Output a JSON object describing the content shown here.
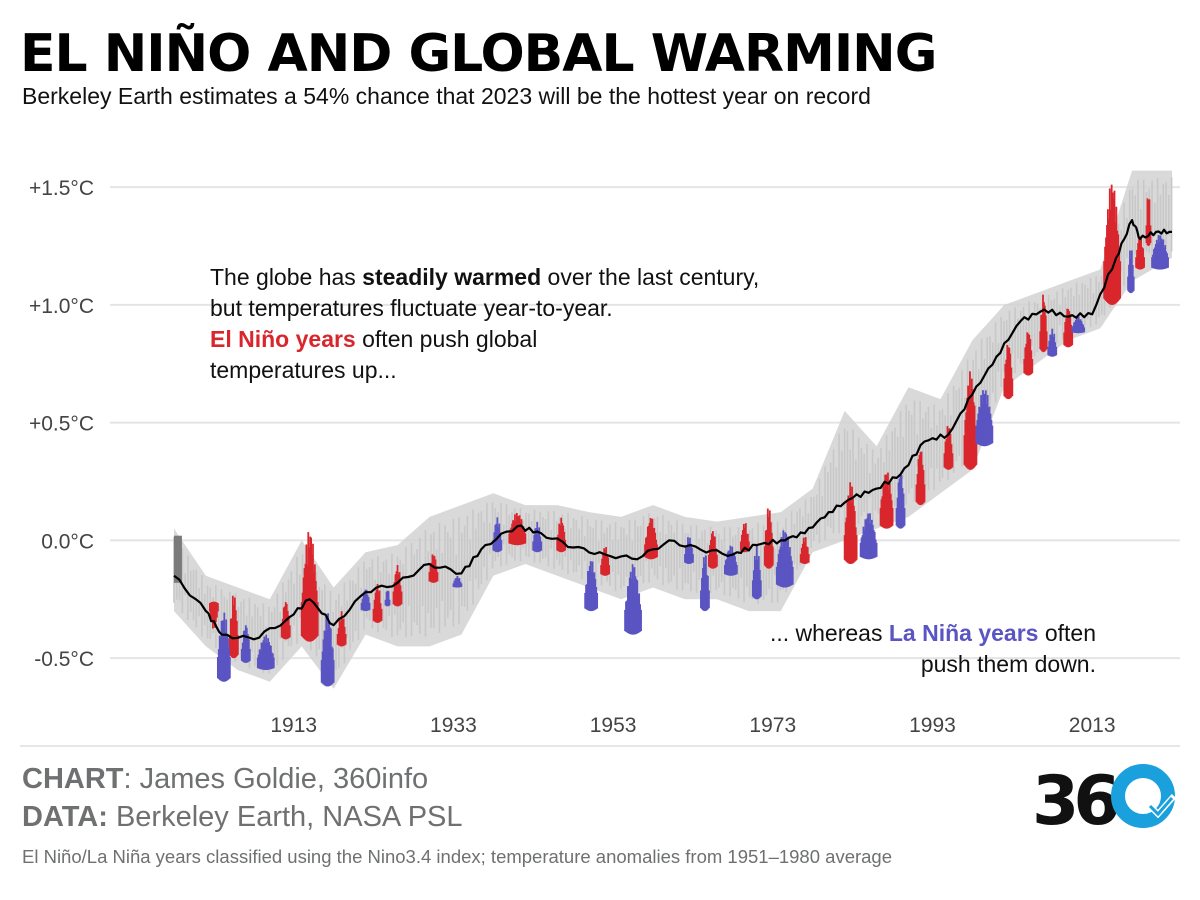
{
  "header": {
    "title": "EL NIÑO AND GLOBAL WARMING",
    "subtitle": "Berkeley Earth estimates a 54% chance that 2023 will be the hottest year on record"
  },
  "annotations": {
    "top_line1_pre": "The globe has ",
    "top_line1_bold": "steadily warmed",
    "top_line1_post": " over the last century,",
    "top_line2": "but temperatures fluctuate year-to-year.",
    "top_line3_red": "El Niño years",
    "top_line3_post": " often push global",
    "top_line4": "temperatures up...",
    "bottom_line1_pre": "... whereas ",
    "bottom_line1_blue": "La Niña years",
    "bottom_line1_post": " often",
    "bottom_line2": "push them down."
  },
  "footer": {
    "chart_label": "CHART",
    "chart_value": ": James Goldie, 360info",
    "data_label": "DATA:",
    "data_value": " Berkeley Earth, NASA PSL",
    "note": "El Niño/La Niña years classified using the Nino3.4 index; temperature anomalies from 1951–1980 average",
    "logo_text": "360"
  },
  "colors": {
    "el_nino": "#d9262c",
    "la_nina": "#5a55c2",
    "neutral": "#d2d2d2",
    "unclassified": "#7a7a7a",
    "trend": "#000000",
    "logo_blue": "#1aa0dc"
  },
  "chart_data": {
    "type": "area",
    "title": "EL NIÑO AND GLOBAL WARMING",
    "x_unit": "year",
    "y_unit": "°C",
    "xlim": [
      1895,
      2024
    ],
    "ylim": [
      -0.72,
      1.7
    ],
    "x_ticks": [
      1913,
      1933,
      1953,
      1973,
      1993,
      2013
    ],
    "y_ticks": [
      {
        "value": 1.5,
        "label": "+1.5°C"
      },
      {
        "value": 1.0,
        "label": "+1.0°C"
      },
      {
        "value": 0.5,
        "label": "+0.5°C"
      },
      {
        "value": 0.0,
        "label": "0.0°C"
      },
      {
        "value": -0.5,
        "label": "-0.5°C"
      }
    ],
    "grid": true,
    "series": [
      {
        "name": "El Niño years",
        "color": "#d9262c",
        "segments": [
          {
            "start": 1902.5,
            "end": 1903.5,
            "peak": -0.38,
            "dip": -0.26
          },
          {
            "start": 1905,
            "end": 1906,
            "peak": -0.22,
            "dip": -0.5
          },
          {
            "start": 1911.5,
            "end": 1912.5,
            "peak": -0.25,
            "dip": -0.42
          },
          {
            "start": 1914,
            "end": 1916,
            "peak": 0.05,
            "dip": -0.43
          },
          {
            "start": 1918.5,
            "end": 1919.5,
            "peak": -0.3,
            "dip": -0.45
          },
          {
            "start": 1923,
            "end": 1924,
            "peak": -0.18,
            "dip": -0.35
          },
          {
            "start": 1925.5,
            "end": 1926.5,
            "peak": -0.1,
            "dip": -0.28
          },
          {
            "start": 1930,
            "end": 1931,
            "peak": -0.05,
            "dip": -0.18
          },
          {
            "start": 1940,
            "end": 1942,
            "peak": 0.12,
            "dip": -0.02
          },
          {
            "start": 1946,
            "end": 1947,
            "peak": 0.1,
            "dip": -0.05
          },
          {
            "start": 1951.5,
            "end": 1952.5,
            "peak": -0.02,
            "dip": -0.15
          },
          {
            "start": 1957,
            "end": 1958.5,
            "peak": 0.1,
            "dip": -0.08
          },
          {
            "start": 1965,
            "end": 1966,
            "peak": 0.05,
            "dip": -0.12
          },
          {
            "start": 1969,
            "end": 1970,
            "peak": 0.08,
            "dip": -0.05
          },
          {
            "start": 1972,
            "end": 1973,
            "peak": 0.15,
            "dip": -0.12
          },
          {
            "start": 1976.5,
            "end": 1977.5,
            "peak": 0.02,
            "dip": -0.1
          },
          {
            "start": 1982,
            "end": 1983.5,
            "peak": 0.25,
            "dip": -0.1
          },
          {
            "start": 1986.5,
            "end": 1988,
            "peak": 0.3,
            "dip": 0.05
          },
          {
            "start": 1991,
            "end": 1992,
            "peak": 0.4,
            "dip": 0.15
          },
          {
            "start": 1994.5,
            "end": 1995.5,
            "peak": 0.5,
            "dip": 0.3
          },
          {
            "start": 1997,
            "end": 1998.5,
            "peak": 0.72,
            "dip": 0.3
          },
          {
            "start": 2002,
            "end": 2003,
            "peak": 0.85,
            "dip": 0.6
          },
          {
            "start": 2004.5,
            "end": 2005.5,
            "peak": 0.9,
            "dip": 0.7
          },
          {
            "start": 2006.5,
            "end": 2007.3,
            "peak": 1.05,
            "dip": 0.8
          },
          {
            "start": 2009.5,
            "end": 2010.5,
            "peak": 1.0,
            "dip": 0.82
          },
          {
            "start": 2014.5,
            "end": 2016.5,
            "peak": 1.53,
            "dip": 1.0
          },
          {
            "start": 2018.5,
            "end": 2019.5,
            "peak": 1.3,
            "dip": 1.15
          },
          {
            "start": 2019.8,
            "end": 2020.3,
            "peak": 1.5,
            "dip": 1.25
          }
        ]
      },
      {
        "name": "La Niña years",
        "color": "#5a55c2",
        "segments": [
          {
            "start": 1903.5,
            "end": 1905,
            "peak": -0.3,
            "dip": -0.6
          },
          {
            "start": 1906.5,
            "end": 1907.5,
            "peak": -0.35,
            "dip": -0.52
          },
          {
            "start": 1908.5,
            "end": 1910.5,
            "peak": -0.4,
            "dip": -0.55
          },
          {
            "start": 1916.5,
            "end": 1918,
            "peak": -0.3,
            "dip": -0.62
          },
          {
            "start": 1921.5,
            "end": 1922.5,
            "peak": -0.2,
            "dip": -0.3
          },
          {
            "start": 1924.5,
            "end": 1925,
            "peak": -0.2,
            "dip": -0.28
          },
          {
            "start": 1933,
            "end": 1934,
            "peak": -0.15,
            "dip": -0.2
          },
          {
            "start": 1938,
            "end": 1939,
            "peak": 0.1,
            "dip": -0.05
          },
          {
            "start": 1943,
            "end": 1944,
            "peak": 0.08,
            "dip": -0.05
          },
          {
            "start": 1949.5,
            "end": 1951,
            "peak": -0.08,
            "dip": -0.3
          },
          {
            "start": 1954.5,
            "end": 1956.5,
            "peak": -0.1,
            "dip": -0.4
          },
          {
            "start": 1962,
            "end": 1963,
            "peak": 0.02,
            "dip": -0.1
          },
          {
            "start": 1964,
            "end": 1965,
            "peak": -0.05,
            "dip": -0.3
          },
          {
            "start": 1967,
            "end": 1968.5,
            "peak": -0.02,
            "dip": -0.15
          },
          {
            "start": 1970.5,
            "end": 1971.5,
            "peak": -0.02,
            "dip": -0.25
          },
          {
            "start": 1973.5,
            "end": 1975.5,
            "peak": 0.05,
            "dip": -0.2
          },
          {
            "start": 1984,
            "end": 1986,
            "peak": 0.12,
            "dip": -0.08
          },
          {
            "start": 1988.5,
            "end": 1989.5,
            "peak": 0.3,
            "dip": 0.05
          },
          {
            "start": 1998.5,
            "end": 2000.5,
            "peak": 0.65,
            "dip": 0.4
          },
          {
            "start": 2007.5,
            "end": 2008.5,
            "peak": 0.9,
            "dip": 0.78
          },
          {
            "start": 2010.5,
            "end": 2012,
            "peak": 0.95,
            "dip": 0.88
          },
          {
            "start": 2017.5,
            "end": 2018.2,
            "peak": 1.25,
            "dip": 1.05
          },
          {
            "start": 2020.5,
            "end": 2022.5,
            "peak": 1.3,
            "dip": 1.15
          }
        ]
      }
    ],
    "trend": {
      "name": "",
      "x": [
        1898,
        1902,
        1904,
        1908,
        1912,
        1915,
        1918,
        1922,
        1926,
        1930,
        1934,
        1937,
        1941,
        1944,
        1948,
        1952,
        1956,
        1960,
        1964,
        1968,
        1971,
        1974,
        1977,
        1980,
        1983,
        1986,
        1989,
        1992,
        1995,
        1998,
        2001,
        2004,
        2007,
        2010,
        2013,
        2016,
        2018,
        2019,
        2021,
        2023
      ],
      "y": [
        -0.15,
        -0.3,
        -0.4,
        -0.42,
        -0.34,
        -0.25,
        -0.36,
        -0.22,
        -0.18,
        -0.1,
        -0.14,
        -0.02,
        0.06,
        0.03,
        -0.03,
        -0.06,
        -0.08,
        0.0,
        -0.04,
        -0.06,
        -0.02,
        0.0,
        0.03,
        0.12,
        0.18,
        0.22,
        0.28,
        0.42,
        0.45,
        0.62,
        0.78,
        0.93,
        0.98,
        0.95,
        0.96,
        1.2,
        1.36,
        1.28,
        1.31,
        1.31
      ]
    },
    "neutral_envelope": {
      "x": [
        1898,
        1902,
        1906,
        1910,
        1914,
        1918,
        1922,
        1926,
        1930,
        1934,
        1938,
        1942,
        1946,
        1950,
        1954,
        1958,
        1962,
        1966,
        1970,
        1974,
        1978,
        1982,
        1986,
        1990,
        1994,
        1998,
        2002,
        2006,
        2010,
        2014,
        2018,
        2023
      ],
      "high": [
        0.05,
        -0.15,
        -0.2,
        -0.25,
        0.0,
        -0.2,
        -0.05,
        -0.02,
        0.1,
        0.15,
        0.2,
        0.15,
        0.15,
        0.12,
        0.1,
        0.15,
        0.1,
        0.08,
        0.1,
        0.12,
        0.22,
        0.55,
        0.4,
        0.65,
        0.6,
        0.85,
        1.0,
        1.05,
        1.1,
        1.15,
        1.57,
        1.57
      ],
      "low": [
        -0.3,
        -0.45,
        -0.55,
        -0.6,
        -0.45,
        -0.63,
        -0.4,
        -0.45,
        -0.45,
        -0.4,
        -0.15,
        -0.1,
        -0.15,
        -0.2,
        -0.25,
        -0.2,
        -0.25,
        -0.25,
        -0.3,
        -0.3,
        -0.05,
        0.0,
        0.05,
        0.1,
        0.2,
        0.3,
        0.65,
        0.75,
        0.85,
        0.9,
        1.1,
        1.2
      ]
    }
  }
}
